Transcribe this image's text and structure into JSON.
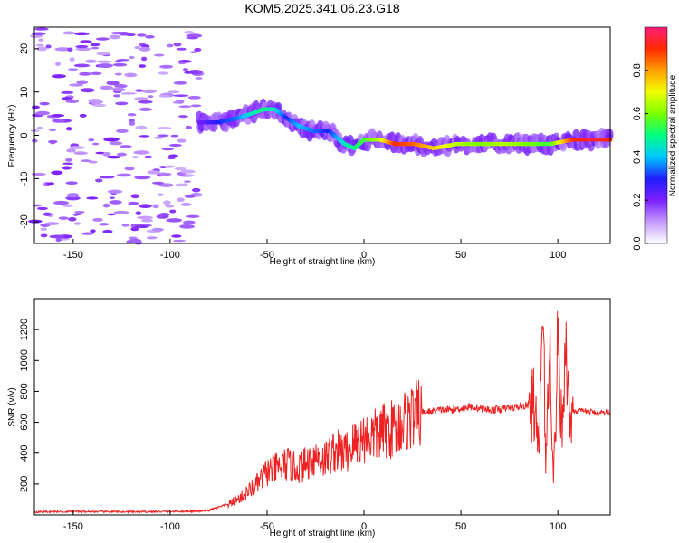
{
  "title": "KOM5.2025.341.06.23.G18",
  "chart_data": [
    {
      "type": "heatmap",
      "xlabel": "Height of straight line (km)",
      "ylabel": "Frequency (Hz)",
      "xlim": [
        -170,
        127
      ],
      "ylim": [
        -25,
        25
      ],
      "xticks": [
        -150,
        -100,
        -50,
        0,
        50,
        100
      ],
      "yticks": [
        -20,
        -10,
        0,
        10,
        20
      ],
      "grid": false,
      "description_of_ridge": "dominant spectral ridge, frequency (Hz) vs height (km)",
      "ridge": {
        "x": [
          -85,
          -75,
          -65,
          -58,
          -52,
          -46,
          -40,
          -33,
          -26,
          -18,
          -10,
          -5,
          0,
          8,
          16,
          26,
          36,
          48,
          60,
          72,
          84,
          96,
          108,
          120,
          127
        ],
        "y": [
          3,
          3,
          4,
          5,
          6,
          6,
          4,
          2,
          1,
          1,
          -2,
          -3,
          -1,
          -1,
          -2,
          -2,
          -3,
          -2,
          -2,
          -2,
          -2,
          -2,
          -1,
          -1,
          -1
        ],
        "amplitude": [
          0.2,
          0.3,
          0.35,
          0.45,
          0.5,
          0.45,
          0.3,
          0.4,
          0.35,
          0.3,
          0.45,
          0.5,
          0.55,
          0.65,
          0.9,
          0.85,
          0.75,
          0.65,
          0.6,
          0.65,
          0.6,
          0.55,
          0.9,
          0.95,
          0.9
        ]
      },
      "noise_region_x": [
        -170,
        -85
      ],
      "colorbar": {
        "label": "Normalized spectral amplitude",
        "range": [
          0,
          1
        ],
        "ticks": [
          0.0,
          0.2,
          0.4,
          0.6,
          0.8
        ],
        "tick_labels": [
          "0.0",
          "0.2",
          "0.4",
          "0.6",
          "0.8"
        ],
        "colors": [
          "#ffffff",
          "#c39bff",
          "#7b1fff",
          "#1f1fff",
          "#00c8ff",
          "#00ff80",
          "#7aff00",
          "#f0ff00",
          "#ffa000",
          "#ff2a00",
          "#ff1f7a"
        ]
      }
    },
    {
      "type": "line",
      "xlabel": "Height of straight line (km)",
      "ylabel": "SNR (v/v)",
      "xlim": [
        -170,
        127
      ],
      "ylim": [
        0,
        1400
      ],
      "xticks": [
        -150,
        -100,
        -50,
        0,
        50,
        100
      ],
      "yticks": [
        200,
        400,
        600,
        800,
        1000,
        1200
      ],
      "line_color": "#ee2222",
      "series": [
        {
          "name": "SNR",
          "x": [
            -170,
            -150,
            -120,
            -100,
            -85,
            -80,
            -75,
            -70,
            -65,
            -60,
            -55,
            -50,
            -45,
            -40,
            -35,
            -30,
            -25,
            -20,
            -15,
            -10,
            -5,
            0,
            5,
            10,
            15,
            20,
            25,
            30,
            35,
            40,
            45,
            50,
            55,
            60,
            65,
            70,
            75,
            80,
            85,
            88,
            90,
            92,
            94,
            96,
            98,
            100,
            102,
            104,
            106,
            108,
            110,
            115,
            120,
            127
          ],
          "y": [
            20,
            22,
            20,
            22,
            25,
            30,
            50,
            70,
            100,
            150,
            200,
            280,
            300,
            330,
            300,
            330,
            380,
            360,
            420,
            400,
            460,
            500,
            510,
            540,
            560,
            600,
            640,
            660,
            670,
            680,
            680,
            690,
            700,
            690,
            680,
            685,
            695,
            700,
            710,
            720,
            300,
            1300,
            400,
            1100,
            200,
            1200,
            500,
            1150,
            600,
            680,
            670,
            670,
            660,
            665
          ]
        }
      ]
    }
  ]
}
